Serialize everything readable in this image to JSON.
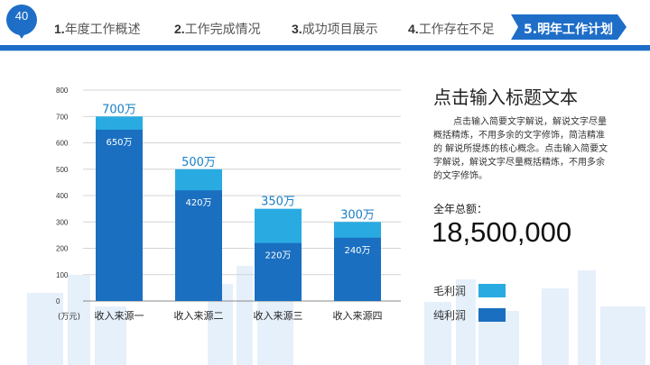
{
  "header": {
    "badge_number": "40",
    "nav": [
      {
        "num": "1.",
        "label": "年度工作概述"
      },
      {
        "num": "2.",
        "label": "工作完成情况"
      },
      {
        "num": "3.",
        "label": "成功项目展示"
      },
      {
        "num": "4.",
        "label": "工作存在不足"
      },
      {
        "num": "5.",
        "label": "明年工作计划",
        "active": true
      }
    ],
    "accent_color": "#1e6ec8"
  },
  "panel": {
    "title": "点击输入标题文本",
    "body": "点击输入简要文字解说，解说文字尽量概括精炼，不用多余的文字修饰，简洁精准的 解说所提炼的核心概念。点击输入简要文字解说，解说文字尽量概括精炼，不用多余的文字修饰。",
    "total_label": "全年总额：",
    "total_value": "18,500,000"
  },
  "legend": [
    {
      "name": "毛利润",
      "color": "#29abe2"
    },
    {
      "name": "纯利润",
      "color": "#1a6fc0"
    }
  ],
  "chart_data": {
    "type": "bar",
    "stacked_overlay": true,
    "categories": [
      "收入来源一",
      "收入来源二",
      "收入来源三",
      "收入来源四"
    ],
    "series": [
      {
        "name": "毛利润",
        "values": [
          700,
          500,
          350,
          300
        ],
        "labels": [
          "700万",
          "500万",
          "350万",
          "300万"
        ],
        "color": "#29abe2"
      },
      {
        "name": "纯利润",
        "values": [
          650,
          420,
          220,
          240
        ],
        "labels": [
          "650万",
          "420万",
          "220万",
          "240万"
        ],
        "color": "#1a6fc0"
      }
    ],
    "unit_label": "(万元)",
    "ylim": [
      0,
      800
    ],
    "yticks": [
      "0",
      "100",
      "200",
      "300",
      "400",
      "500",
      "600",
      "700",
      "800"
    ],
    "grid": true
  }
}
